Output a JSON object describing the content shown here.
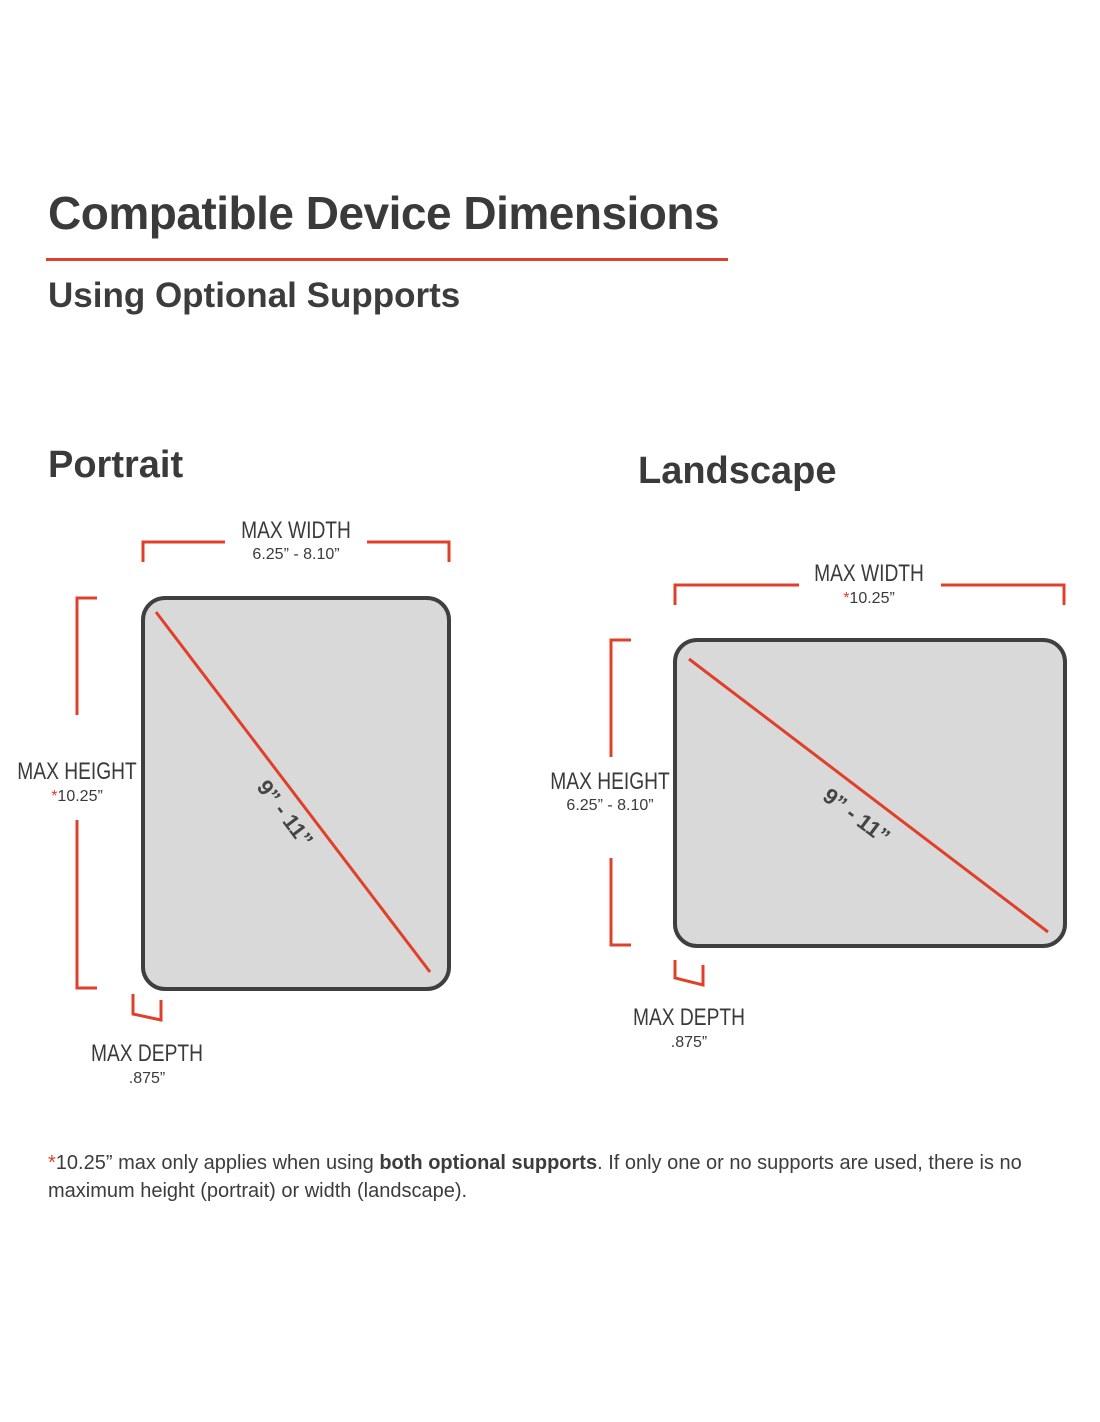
{
  "header": {
    "title": "Compatible Device Dimensions",
    "subtitle": "Using Optional Supports"
  },
  "colors": {
    "accent": "#e0402a",
    "text": "#3a3a3a",
    "device_fill": "#d9d9d9",
    "device_border": "#3f3f3f"
  },
  "portrait": {
    "heading": "Portrait",
    "width_label": "MAX WIDTH",
    "width_value": "6.25” - 8.10”",
    "height_label": "MAX HEIGHT",
    "height_asterisk": "*",
    "height_value": "10.25”",
    "depth_label": "MAX DEPTH",
    "depth_value": ".875”",
    "diagonal": "9” - 11”"
  },
  "landscape": {
    "heading": "Landscape",
    "width_label": "MAX WIDTH",
    "width_asterisk": "*",
    "width_value": "10.25”",
    "height_label": "MAX HEIGHT",
    "height_value": "6.25” - 8.10”",
    "depth_label": "MAX DEPTH",
    "depth_value": ".875”",
    "diagonal": "9” - 11”"
  },
  "footnote": {
    "asterisk": "*",
    "text_before": "10.25” max only applies when using ",
    "bold": "both optional supports",
    "text_after": ". If only one or no supports are used, there is no maximum height (portrait) or width (landscape)."
  }
}
